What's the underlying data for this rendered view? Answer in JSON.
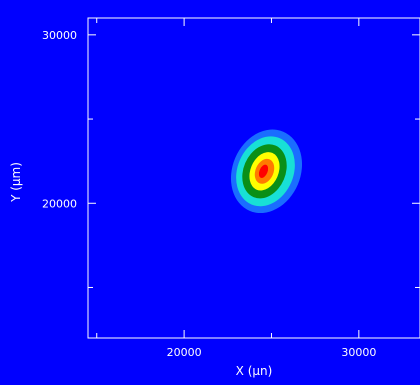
{
  "chart_data": {
    "type": "heatmap",
    "subtype": "contour",
    "title": "",
    "xlabel": "X (µn)",
    "ylabel": "Y (µm)",
    "xlim": [
      14500,
      33500
    ],
    "ylim": [
      12000,
      31000
    ],
    "x_ticks": [
      20000,
      30000
    ],
    "y_ticks": [
      20000,
      30000
    ],
    "x_minor_ticks": [
      15000,
      25000
    ],
    "y_minor_ticks": [
      15000,
      25000
    ],
    "grid": false,
    "legend": "none",
    "colors": {
      "background": "#0000ff",
      "axes": "#ffffff",
      "contour_fills": [
        "#0000ff",
        "#1a6dff",
        "#18e0d6",
        "#0a8f17",
        "#ffff00",
        "#ff7a00",
        "#ff0000"
      ]
    },
    "peak": {
      "x": 24600,
      "y": 21900,
      "value": 1.0
    },
    "contour_levels": [
      {
        "level": 0.1,
        "color": "#1a6dff"
      },
      {
        "level": 0.25,
        "color": "#18e0d6"
      },
      {
        "level": 0.4,
        "color": "#0a8f17"
      },
      {
        "level": 0.55,
        "color": "#ffff00"
      },
      {
        "level": 0.75,
        "color": "#ff7a00"
      },
      {
        "level": 0.9,
        "color": "#ff0000"
      }
    ]
  }
}
